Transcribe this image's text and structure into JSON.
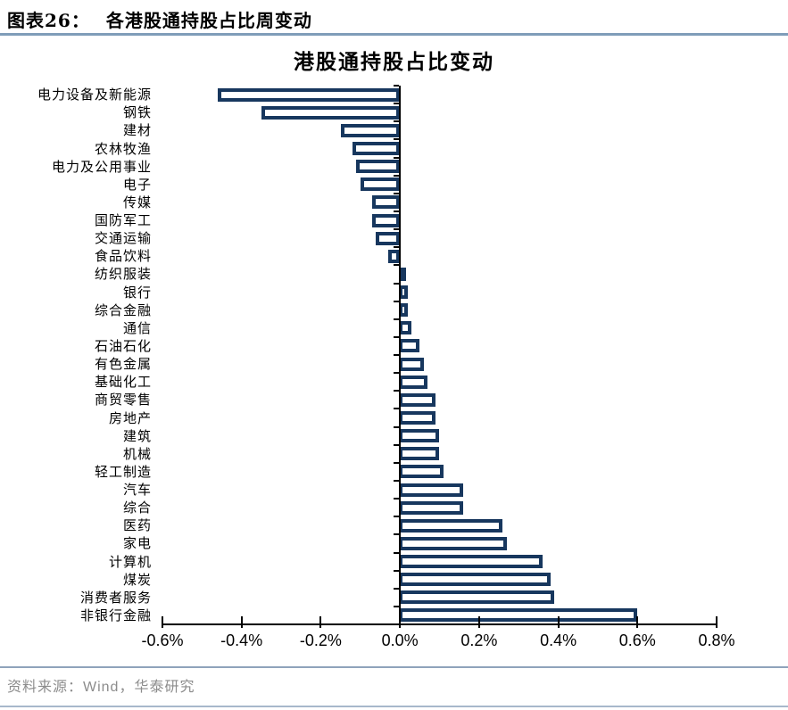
{
  "header": {
    "figure_label": "图表26：",
    "figure_title": "各港股通持股占比周变动"
  },
  "chart_data": {
    "type": "bar",
    "orientation": "horizontal",
    "title": "港股通持股占比变动",
    "categories": [
      "电力设备及新能源",
      "钢铁",
      "建材",
      "农林牧渔",
      "电力及公用事业",
      "电子",
      "传媒",
      "国防军工",
      "交通运输",
      "食品饮料",
      "纺织服装",
      "银行",
      "综合金融",
      "通信",
      "石油石化",
      "有色金属",
      "基础化工",
      "商贸零售",
      "房地产",
      "建筑",
      "机械",
      "轻工制造",
      "汽车",
      "综合",
      "医药",
      "家电",
      "计算机",
      "煤炭",
      "消费者服务",
      "非银行金融"
    ],
    "values": [
      -0.46,
      -0.35,
      -0.15,
      -0.12,
      -0.11,
      -0.1,
      -0.07,
      -0.07,
      -0.06,
      -0.03,
      0.01,
      0.02,
      0.02,
      0.03,
      0.05,
      0.06,
      0.07,
      0.09,
      0.09,
      0.1,
      0.1,
      0.11,
      0.16,
      0.16,
      0.26,
      0.27,
      0.36,
      0.38,
      0.39,
      0.6
    ],
    "unit": "%",
    "x_ticks": [
      "-0.6%",
      "-0.4%",
      "-0.2%",
      "0.0%",
      "0.2%",
      "0.4%",
      "0.6%",
      "0.8%"
    ],
    "xlim": [
      -0.6,
      0.8
    ],
    "grid": false,
    "legend": false,
    "colors": {
      "bar_border": "#17375E",
      "bar_fill": "#FFFFFF",
      "axis": "#000000",
      "header_rule": "#7F9DB9",
      "footer_rule": "#8FA3BB",
      "source_text": "#8C8C8C"
    }
  },
  "footer": {
    "source": "资料来源：Wind，华泰研究"
  }
}
